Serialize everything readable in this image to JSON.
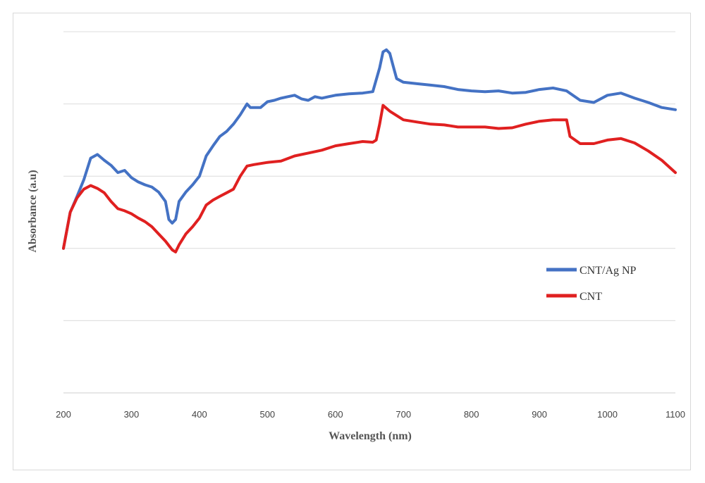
{
  "chart_data": {
    "type": "line",
    "xlabel": "Wavelength (nm)",
    "ylabel": "Absorbance (a.u)",
    "xlim": [
      200,
      1100
    ],
    "ylim": [
      0,
      5
    ],
    "grid": true,
    "legend_position": "right",
    "x_ticks": [
      "200",
      "300",
      "400",
      "500",
      "600",
      "700",
      "800",
      "900",
      "1000",
      "1100"
    ],
    "series": [
      {
        "name": "CNT/Ag NP",
        "color": "#4472C4",
        "points": [
          [
            200,
            2.0
          ],
          [
            210,
            2.5
          ],
          [
            220,
            2.72
          ],
          [
            230,
            2.95
          ],
          [
            240,
            3.25
          ],
          [
            250,
            3.3
          ],
          [
            260,
            3.22
          ],
          [
            270,
            3.15
          ],
          [
            280,
            3.05
          ],
          [
            290,
            3.08
          ],
          [
            300,
            2.98
          ],
          [
            310,
            2.92
          ],
          [
            320,
            2.88
          ],
          [
            330,
            2.85
          ],
          [
            340,
            2.78
          ],
          [
            350,
            2.65
          ],
          [
            355,
            2.4
          ],
          [
            360,
            2.35
          ],
          [
            365,
            2.4
          ],
          [
            370,
            2.65
          ],
          [
            380,
            2.78
          ],
          [
            390,
            2.88
          ],
          [
            400,
            3.0
          ],
          [
            410,
            3.28
          ],
          [
            420,
            3.42
          ],
          [
            430,
            3.55
          ],
          [
            440,
            3.62
          ],
          [
            450,
            3.72
          ],
          [
            460,
            3.85
          ],
          [
            470,
            4.0
          ],
          [
            475,
            3.95
          ],
          [
            480,
            3.95
          ],
          [
            490,
            3.95
          ],
          [
            500,
            4.03
          ],
          [
            510,
            4.05
          ],
          [
            520,
            4.08
          ],
          [
            530,
            4.1
          ],
          [
            540,
            4.12
          ],
          [
            550,
            4.07
          ],
          [
            560,
            4.05
          ],
          [
            570,
            4.1
          ],
          [
            580,
            4.08
          ],
          [
            590,
            4.1
          ],
          [
            600,
            4.12
          ],
          [
            620,
            4.14
          ],
          [
            640,
            4.15
          ],
          [
            655,
            4.17
          ],
          [
            665,
            4.5
          ],
          [
            670,
            4.72
          ],
          [
            675,
            4.75
          ],
          [
            680,
            4.7
          ],
          [
            685,
            4.52
          ],
          [
            690,
            4.35
          ],
          [
            700,
            4.3
          ],
          [
            720,
            4.28
          ],
          [
            740,
            4.26
          ],
          [
            760,
            4.24
          ],
          [
            780,
            4.2
          ],
          [
            800,
            4.18
          ],
          [
            820,
            4.17
          ],
          [
            840,
            4.18
          ],
          [
            860,
            4.15
          ],
          [
            880,
            4.16
          ],
          [
            900,
            4.2
          ],
          [
            920,
            4.22
          ],
          [
            940,
            4.18
          ],
          [
            960,
            4.05
          ],
          [
            980,
            4.02
          ],
          [
            1000,
            4.12
          ],
          [
            1020,
            4.15
          ],
          [
            1040,
            4.08
          ],
          [
            1060,
            4.02
          ],
          [
            1080,
            3.95
          ],
          [
            1100,
            3.92
          ]
        ]
      },
      {
        "name": "CNT",
        "color": "#E02020",
        "points": [
          [
            200,
            2.0
          ],
          [
            210,
            2.5
          ],
          [
            220,
            2.7
          ],
          [
            230,
            2.82
          ],
          [
            240,
            2.87
          ],
          [
            250,
            2.83
          ],
          [
            260,
            2.77
          ],
          [
            270,
            2.65
          ],
          [
            280,
            2.55
          ],
          [
            290,
            2.52
          ],
          [
            300,
            2.48
          ],
          [
            310,
            2.42
          ],
          [
            320,
            2.37
          ],
          [
            330,
            2.3
          ],
          [
            340,
            2.2
          ],
          [
            350,
            2.1
          ],
          [
            360,
            1.98
          ],
          [
            365,
            1.95
          ],
          [
            370,
            2.05
          ],
          [
            380,
            2.2
          ],
          [
            390,
            2.3
          ],
          [
            400,
            2.42
          ],
          [
            410,
            2.6
          ],
          [
            420,
            2.67
          ],
          [
            430,
            2.72
          ],
          [
            440,
            2.77
          ],
          [
            450,
            2.82
          ],
          [
            460,
            3.0
          ],
          [
            470,
            3.14
          ],
          [
            480,
            3.16
          ],
          [
            500,
            3.19
          ],
          [
            520,
            3.21
          ],
          [
            540,
            3.28
          ],
          [
            560,
            3.32
          ],
          [
            580,
            3.36
          ],
          [
            600,
            3.42
          ],
          [
            620,
            3.45
          ],
          [
            640,
            3.48
          ],
          [
            655,
            3.47
          ],
          [
            660,
            3.5
          ],
          [
            665,
            3.72
          ],
          [
            670,
            3.98
          ],
          [
            680,
            3.9
          ],
          [
            700,
            3.78
          ],
          [
            720,
            3.75
          ],
          [
            740,
            3.72
          ],
          [
            760,
            3.71
          ],
          [
            780,
            3.68
          ],
          [
            800,
            3.68
          ],
          [
            820,
            3.68
          ],
          [
            840,
            3.66
          ],
          [
            860,
            3.67
          ],
          [
            880,
            3.72
          ],
          [
            900,
            3.76
          ],
          [
            920,
            3.78
          ],
          [
            940,
            3.78
          ],
          [
            945,
            3.55
          ],
          [
            960,
            3.45
          ],
          [
            980,
            3.45
          ],
          [
            1000,
            3.5
          ],
          [
            1020,
            3.52
          ],
          [
            1040,
            3.46
          ],
          [
            1060,
            3.35
          ],
          [
            1080,
            3.22
          ],
          [
            1100,
            3.05
          ]
        ]
      }
    ]
  }
}
